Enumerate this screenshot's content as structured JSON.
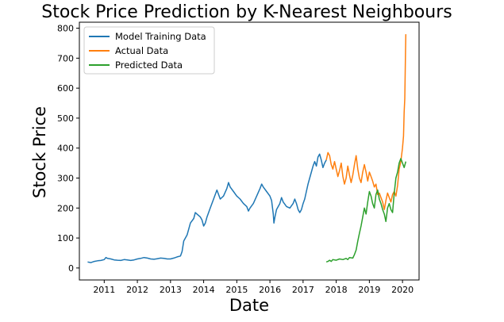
{
  "chart_data": {
    "type": "line",
    "title": "Stock Price Prediction by K-Nearest Neighbours",
    "xlabel": "Date",
    "ylabel": "Stock Price",
    "xlim": [
      2010.25,
      2020.5
    ],
    "ylim": [
      -40,
      820
    ],
    "xticks": [
      2011,
      2012,
      2013,
      2014,
      2015,
      2016,
      2017,
      2018,
      2019,
      2020
    ],
    "yticks": [
      0,
      100,
      200,
      300,
      400,
      500,
      600,
      700,
      800
    ],
    "grid": false,
    "legend": {
      "position": "top-left"
    },
    "series": [
      {
        "name": "Model Training Data",
        "color": "#1f77b4",
        "points": [
          [
            2010.5,
            20
          ],
          [
            2010.6,
            18
          ],
          [
            2010.7,
            22
          ],
          [
            2010.8,
            24
          ],
          [
            2010.9,
            25
          ],
          [
            2011.0,
            28
          ],
          [
            2011.05,
            35
          ],
          [
            2011.1,
            32
          ],
          [
            2011.2,
            30
          ],
          [
            2011.3,
            27
          ],
          [
            2011.4,
            26
          ],
          [
            2011.5,
            25
          ],
          [
            2011.6,
            28
          ],
          [
            2011.7,
            27
          ],
          [
            2011.8,
            25
          ],
          [
            2011.9,
            27
          ],
          [
            2012.0,
            30
          ],
          [
            2012.1,
            32
          ],
          [
            2012.2,
            35
          ],
          [
            2012.3,
            33
          ],
          [
            2012.4,
            30
          ],
          [
            2012.5,
            29
          ],
          [
            2012.6,
            31
          ],
          [
            2012.7,
            33
          ],
          [
            2012.8,
            32
          ],
          [
            2012.9,
            30
          ],
          [
            2013.0,
            30
          ],
          [
            2013.1,
            33
          ],
          [
            2013.2,
            37
          ],
          [
            2013.3,
            40
          ],
          [
            2013.35,
            55
          ],
          [
            2013.4,
            90
          ],
          [
            2013.5,
            110
          ],
          [
            2013.55,
            130
          ],
          [
            2013.6,
            150
          ],
          [
            2013.7,
            165
          ],
          [
            2013.75,
            185
          ],
          [
            2013.8,
            180
          ],
          [
            2013.9,
            170
          ],
          [
            2013.95,
            160
          ],
          [
            2014.0,
            140
          ],
          [
            2014.05,
            150
          ],
          [
            2014.1,
            170
          ],
          [
            2014.2,
            200
          ],
          [
            2014.3,
            230
          ],
          [
            2014.4,
            260
          ],
          [
            2014.45,
            245
          ],
          [
            2014.5,
            230
          ],
          [
            2014.6,
            240
          ],
          [
            2014.7,
            265
          ],
          [
            2014.75,
            285
          ],
          [
            2014.8,
            270
          ],
          [
            2014.9,
            255
          ],
          [
            2015.0,
            240
          ],
          [
            2015.1,
            230
          ],
          [
            2015.2,
            215
          ],
          [
            2015.3,
            205
          ],
          [
            2015.35,
            190
          ],
          [
            2015.4,
            200
          ],
          [
            2015.5,
            215
          ],
          [
            2015.6,
            240
          ],
          [
            2015.7,
            265
          ],
          [
            2015.75,
            280
          ],
          [
            2015.8,
            270
          ],
          [
            2015.9,
            255
          ],
          [
            2016.0,
            240
          ],
          [
            2016.05,
            225
          ],
          [
            2016.1,
            180
          ],
          [
            2016.12,
            150
          ],
          [
            2016.15,
            170
          ],
          [
            2016.2,
            195
          ],
          [
            2016.3,
            215
          ],
          [
            2016.35,
            235
          ],
          [
            2016.4,
            220
          ],
          [
            2016.5,
            205
          ],
          [
            2016.6,
            200
          ],
          [
            2016.7,
            215
          ],
          [
            2016.75,
            230
          ],
          [
            2016.8,
            215
          ],
          [
            2016.85,
            195
          ],
          [
            2016.9,
            185
          ],
          [
            2016.95,
            195
          ],
          [
            2017.0,
            215
          ],
          [
            2017.05,
            230
          ],
          [
            2017.1,
            255
          ],
          [
            2017.15,
            280
          ],
          [
            2017.2,
            300
          ],
          [
            2017.25,
            320
          ],
          [
            2017.3,
            340
          ],
          [
            2017.35,
            355
          ],
          [
            2017.4,
            340
          ],
          [
            2017.45,
            370
          ],
          [
            2017.5,
            380
          ],
          [
            2017.55,
            360
          ],
          [
            2017.6,
            335
          ],
          [
            2017.65,
            350
          ],
          [
            2017.7,
            360
          ]
        ]
      },
      {
        "name": "Actual Data",
        "color": "#ff7f0e",
        "points": [
          [
            2017.7,
            360
          ],
          [
            2017.75,
            385
          ],
          [
            2017.8,
            375
          ],
          [
            2017.85,
            345
          ],
          [
            2017.9,
            330
          ],
          [
            2017.95,
            355
          ],
          [
            2018.0,
            330
          ],
          [
            2018.05,
            305
          ],
          [
            2018.1,
            325
          ],
          [
            2018.15,
            350
          ],
          [
            2018.2,
            305
          ],
          [
            2018.25,
            280
          ],
          [
            2018.3,
            300
          ],
          [
            2018.35,
            340
          ],
          [
            2018.4,
            310
          ],
          [
            2018.45,
            285
          ],
          [
            2018.5,
            310
          ],
          [
            2018.55,
            345
          ],
          [
            2018.6,
            375
          ],
          [
            2018.65,
            330
          ],
          [
            2018.7,
            300
          ],
          [
            2018.75,
            285
          ],
          [
            2018.8,
            320
          ],
          [
            2018.85,
            345
          ],
          [
            2018.9,
            320
          ],
          [
            2018.95,
            290
          ],
          [
            2019.0,
            320
          ],
          [
            2019.05,
            305
          ],
          [
            2019.1,
            290
          ],
          [
            2019.15,
            270
          ],
          [
            2019.2,
            280
          ],
          [
            2019.25,
            245
          ],
          [
            2019.3,
            250
          ],
          [
            2019.35,
            235
          ],
          [
            2019.4,
            220
          ],
          [
            2019.45,
            195
          ],
          [
            2019.5,
            225
          ],
          [
            2019.55,
            250
          ],
          [
            2019.6,
            235
          ],
          [
            2019.65,
            220
          ],
          [
            2019.7,
            245
          ],
          [
            2019.75,
            255
          ],
          [
            2019.8,
            240
          ],
          [
            2019.85,
            275
          ],
          [
            2019.9,
            330
          ],
          [
            2019.95,
            355
          ],
          [
            2020.0,
            400
          ],
          [
            2020.03,
            440
          ],
          [
            2020.05,
            520
          ],
          [
            2020.07,
            565
          ],
          [
            2020.08,
            650
          ],
          [
            2020.09,
            720
          ],
          [
            2020.1,
            780
          ]
        ]
      },
      {
        "name": "Predicted Data",
        "color": "#2ca02c",
        "points": [
          [
            2017.7,
            20
          ],
          [
            2017.75,
            22
          ],
          [
            2017.8,
            26
          ],
          [
            2017.85,
            22
          ],
          [
            2017.9,
            28
          ],
          [
            2018.0,
            26
          ],
          [
            2018.1,
            30
          ],
          [
            2018.2,
            28
          ],
          [
            2018.3,
            32
          ],
          [
            2018.35,
            28
          ],
          [
            2018.4,
            35
          ],
          [
            2018.5,
            33
          ],
          [
            2018.55,
            45
          ],
          [
            2018.6,
            60
          ],
          [
            2018.65,
            90
          ],
          [
            2018.7,
            115
          ],
          [
            2018.75,
            140
          ],
          [
            2018.8,
            170
          ],
          [
            2018.85,
            200
          ],
          [
            2018.9,
            180
          ],
          [
            2018.95,
            220
          ],
          [
            2019.0,
            255
          ],
          [
            2019.05,
            240
          ],
          [
            2019.1,
            215
          ],
          [
            2019.15,
            200
          ],
          [
            2019.2,
            245
          ],
          [
            2019.25,
            260
          ],
          [
            2019.3,
            230
          ],
          [
            2019.35,
            215
          ],
          [
            2019.4,
            195
          ],
          [
            2019.45,
            180
          ],
          [
            2019.5,
            155
          ],
          [
            2019.55,
            200
          ],
          [
            2019.6,
            215
          ],
          [
            2019.65,
            195
          ],
          [
            2019.7,
            185
          ],
          [
            2019.75,
            250
          ],
          [
            2019.8,
            300
          ],
          [
            2019.85,
            320
          ],
          [
            2019.9,
            350
          ],
          [
            2019.95,
            365
          ],
          [
            2020.0,
            350
          ],
          [
            2020.05,
            335
          ],
          [
            2020.1,
            355
          ]
        ]
      }
    ]
  }
}
